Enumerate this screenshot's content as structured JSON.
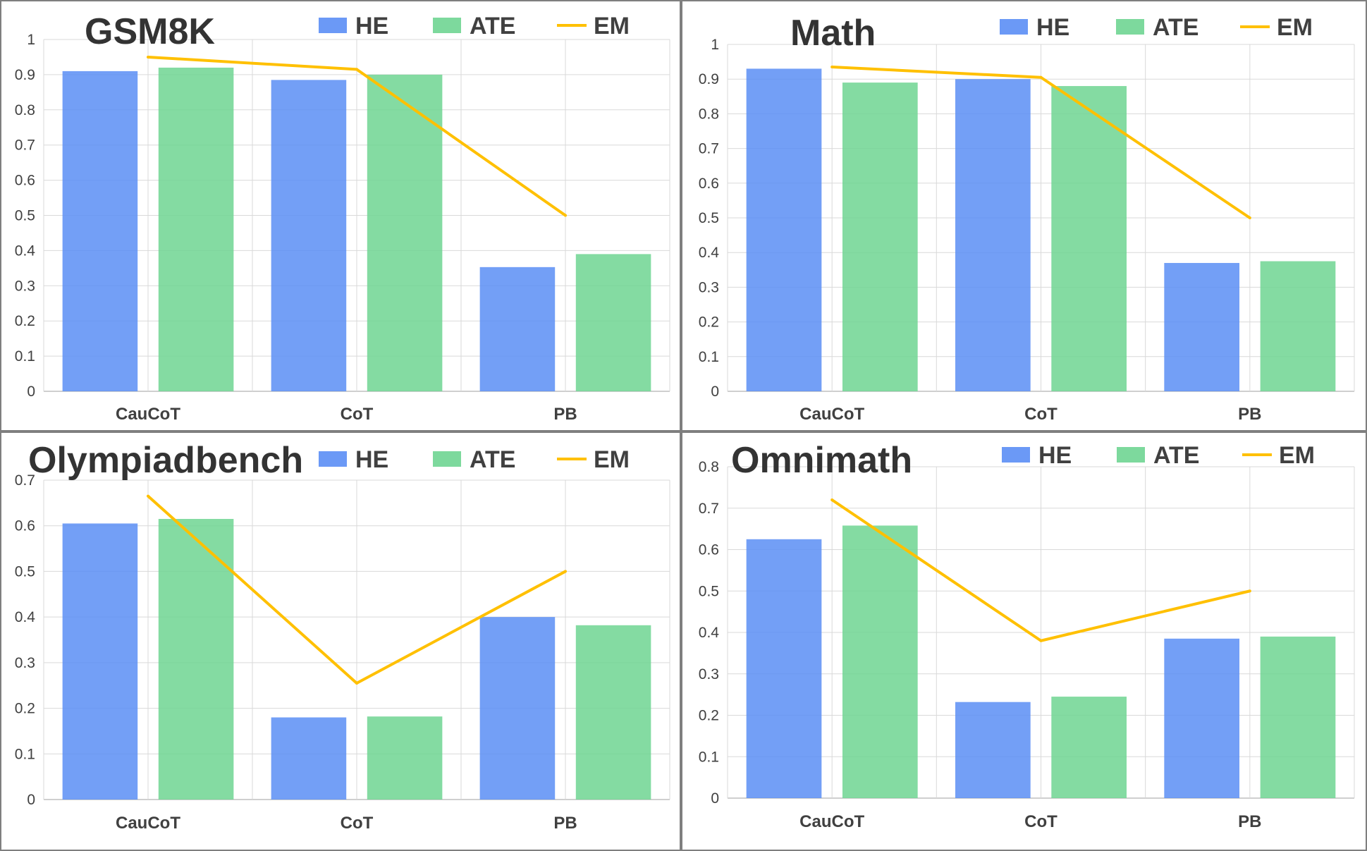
{
  "colors": {
    "HE": "#5b8ef5",
    "ATE": "#6fd592",
    "EM": "#ffc000"
  },
  "chart_data": [
    {
      "type": "bar",
      "title": "GSM8K",
      "categories": [
        "CauCoT",
        "CoT",
        "PB"
      ],
      "ylim": [
        0,
        1
      ],
      "yticks": [
        "0",
        "0.1",
        "0.2",
        "0.3",
        "0.4",
        "0.5",
        "0.6",
        "0.7",
        "0.8",
        "0.9",
        "1"
      ],
      "series": [
        {
          "name": "HE",
          "type": "bar",
          "values": [
            0.91,
            0.885,
            0.353
          ]
        },
        {
          "name": "ATE",
          "type": "bar",
          "values": [
            0.92,
            0.9,
            0.39
          ]
        },
        {
          "name": "EM",
          "type": "line",
          "values": [
            0.95,
            0.915,
            0.5
          ]
        }
      ],
      "legend": "top",
      "grid": true
    },
    {
      "type": "bar",
      "title": "Math",
      "categories": [
        "CauCoT",
        "CoT",
        "PB"
      ],
      "ylim": [
        0,
        1
      ],
      "yticks": [
        "0",
        "0.1",
        "0.2",
        "0.3",
        "0.4",
        "0.5",
        "0.6",
        "0.7",
        "0.8",
        "0.9",
        "1"
      ],
      "series": [
        {
          "name": "HE",
          "type": "bar",
          "values": [
            0.93,
            0.9,
            0.37
          ]
        },
        {
          "name": "ATE",
          "type": "bar",
          "values": [
            0.89,
            0.88,
            0.375
          ]
        },
        {
          "name": "EM",
          "type": "line",
          "values": [
            0.935,
            0.905,
            0.5
          ]
        }
      ],
      "legend": "top",
      "grid": true
    },
    {
      "type": "bar",
      "title": "Olympiadbench",
      "categories": [
        "CauCoT",
        "CoT",
        "PB"
      ],
      "ylim": [
        0,
        0.7
      ],
      "yticks": [
        "0",
        "0.1",
        "0.2",
        "0.3",
        "0.4",
        "0.5",
        "0.6",
        "0.7"
      ],
      "series": [
        {
          "name": "HE",
          "type": "bar",
          "values": [
            0.605,
            0.18,
            0.4
          ]
        },
        {
          "name": "ATE",
          "type": "bar",
          "values": [
            0.615,
            0.182,
            0.382
          ]
        },
        {
          "name": "EM",
          "type": "line",
          "values": [
            0.665,
            0.255,
            0.5
          ]
        }
      ],
      "legend": "top",
      "grid": true
    },
    {
      "type": "bar",
      "title": "Omnimath",
      "categories": [
        "CauCoT",
        "CoT",
        "PB"
      ],
      "ylim": [
        0,
        0.8
      ],
      "yticks": [
        "0",
        "0.1",
        "0.2",
        "0.3",
        "0.4",
        "0.5",
        "0.6",
        "0.7",
        "0.8"
      ],
      "series": [
        {
          "name": "HE",
          "type": "bar",
          "values": [
            0.625,
            0.232,
            0.385
          ]
        },
        {
          "name": "ATE",
          "type": "bar",
          "values": [
            0.658,
            0.245,
            0.39
          ]
        },
        {
          "name": "EM",
          "type": "line",
          "values": [
            0.72,
            0.38,
            0.5
          ]
        }
      ],
      "legend": "top",
      "grid": true
    }
  ]
}
